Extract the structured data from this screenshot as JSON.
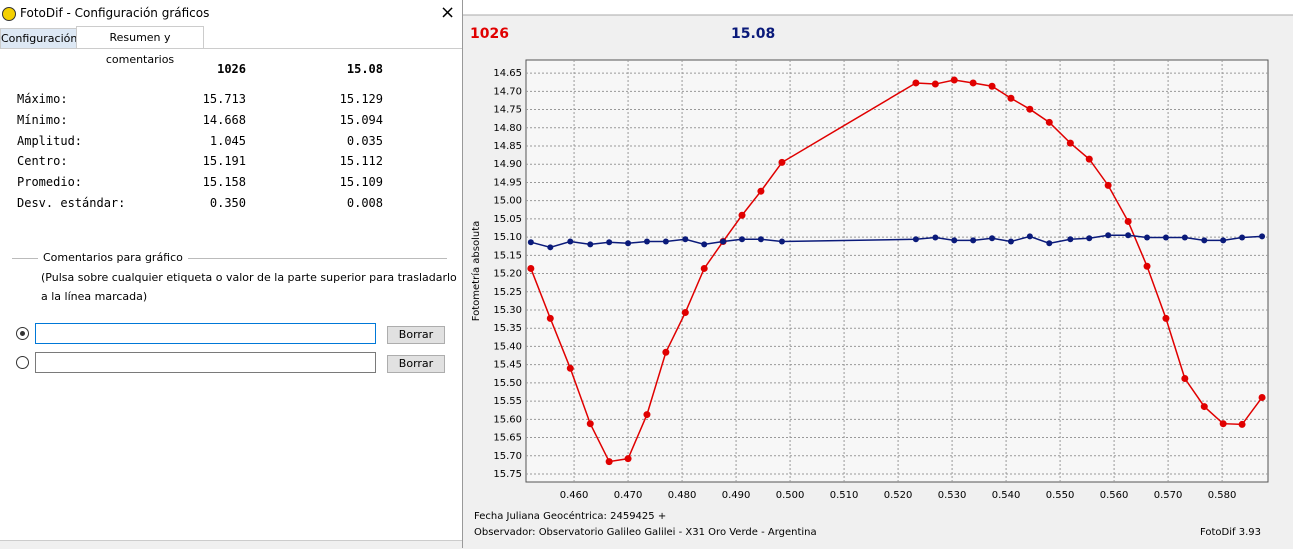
{
  "dialog": {
    "title": "FotoDif - Configuración gráficos",
    "tabs": [
      "Configuración",
      "Resumen y comentarios"
    ],
    "summary": {
      "headers": [
        "1026",
        "15.08"
      ],
      "rows": [
        {
          "label": "Máximo:",
          "values": [
            "15.713",
            "15.129"
          ]
        },
        {
          "label": "Mínimo:",
          "values": [
            "14.668",
            "15.094"
          ]
        },
        {
          "label": "Amplitud:",
          "values": [
            "1.045",
            "0.035"
          ]
        },
        {
          "label": "Centro:",
          "values": [
            "15.191",
            "15.112"
          ]
        },
        {
          "label": "Promedio:",
          "values": [
            "15.158",
            "15.109"
          ]
        },
        {
          "label": "Desv. estándar:",
          "values": [
            "0.350",
            "0.008"
          ]
        }
      ]
    },
    "comments": {
      "title": "Comentarios para gráfico",
      "help": [
        "(Pulsa sobre cualquier etiqueta o valor de la parte superior para trasladarlo",
        "a la línea marcada)"
      ],
      "buttons": [
        "Borrar",
        "Borrar"
      ]
    }
  },
  "chart_data": {
    "type": "line",
    "ylabel": "Fotometría absoluta",
    "xlabel": "Fecha Juliana Geocéntrica: 2459425 +",
    "footer": "Observador: Observatorio Galileo Galilei - X31 Oro Verde - Argentina",
    "version": "FotoDif 3.93",
    "invert_y": true,
    "grid": true,
    "xlim": [
      0.4511,
      0.5885
    ],
    "ylim": [
      14.614,
      15.772
    ],
    "xticks": [
      {
        "value": 0.46,
        "label": "0.460"
      },
      {
        "value": 0.47,
        "label": "0.470"
      },
      {
        "value": 0.48,
        "label": "0.480"
      },
      {
        "value": 0.49,
        "label": "0.490"
      },
      {
        "value": 0.5,
        "label": "0.500"
      },
      {
        "value": 0.51,
        "label": "0.510"
      },
      {
        "value": 0.52,
        "label": "0.520"
      },
      {
        "value": 0.53,
        "label": "0.530"
      },
      {
        "value": 0.54,
        "label": "0.540"
      },
      {
        "value": 0.55,
        "label": "0.550"
      },
      {
        "value": 0.56,
        "label": "0.560"
      },
      {
        "value": 0.57,
        "label": "0.570"
      },
      {
        "value": 0.58,
        "label": "0.580"
      }
    ],
    "yticks": [
      14.65,
      {
        "value": 14.7,
        "label": "14.70"
      },
      14.75,
      {
        "value": 14.8,
        "label": "14.80"
      },
      14.85,
      {
        "value": 14.9,
        "label": "14.90"
      },
      14.95,
      {
        "value": 15,
        "label": "15.00"
      },
      15.05,
      {
        "value": 15.1,
        "label": "15.10"
      },
      15.15,
      {
        "value": 15.2,
        "label": "15.20"
      },
      15.25,
      {
        "value": 15.3,
        "label": "15.30"
      },
      15.35,
      {
        "value": 15.4,
        "label": "15.40"
      },
      15.45,
      {
        "value": 15.5,
        "label": "15.50"
      },
      15.55,
      {
        "value": 15.6,
        "label": "15.60"
      },
      15.65,
      {
        "value": 15.7,
        "label": "15.70"
      },
      15.75
    ],
    "x": [
      0.452,
      0.4556,
      0.4593,
      0.463,
      0.4665,
      0.47,
      0.4735,
      0.477,
      0.4806,
      0.4841,
      0.4876,
      0.4911,
      0.4946,
      0.4985,
      0.5233,
      0.5269,
      0.5304,
      0.5339,
      0.5374,
      0.5409,
      0.5444,
      0.548,
      0.5519,
      0.5554,
      0.5589,
      0.5626,
      0.5661,
      0.5696,
      0.5731,
      0.5767,
      0.5802,
      0.5837,
      0.5874
    ],
    "series": [
      {
        "name": "1026",
        "color": "#e00000",
        "values": [
          15.186,
          15.323,
          15.46,
          15.612,
          15.716,
          15.708,
          15.587,
          15.416,
          15.307,
          15.186,
          15.112,
          15.04,
          14.974,
          14.895,
          14.677,
          14.68,
          14.669,
          14.677,
          14.686,
          14.719,
          14.749,
          14.785,
          14.842,
          14.886,
          14.958,
          15.057,
          15.18,
          15.323,
          15.488,
          15.565,
          15.612,
          15.614,
          15.54
        ]
      },
      {
        "name": "15.08",
        "color": "#0a1a7a",
        "values": [
          15.114,
          15.128,
          15.112,
          15.12,
          15.114,
          15.117,
          15.112,
          15.112,
          15.106,
          15.12,
          15.112,
          15.106,
          15.106,
          15.112,
          15.106,
          15.101,
          15.109,
          15.109,
          15.103,
          15.112,
          15.098,
          15.117,
          15.106,
          15.103,
          15.095,
          15.095,
          15.101,
          15.101,
          15.101,
          15.109,
          15.109,
          15.101,
          15.098
        ]
      }
    ]
  }
}
